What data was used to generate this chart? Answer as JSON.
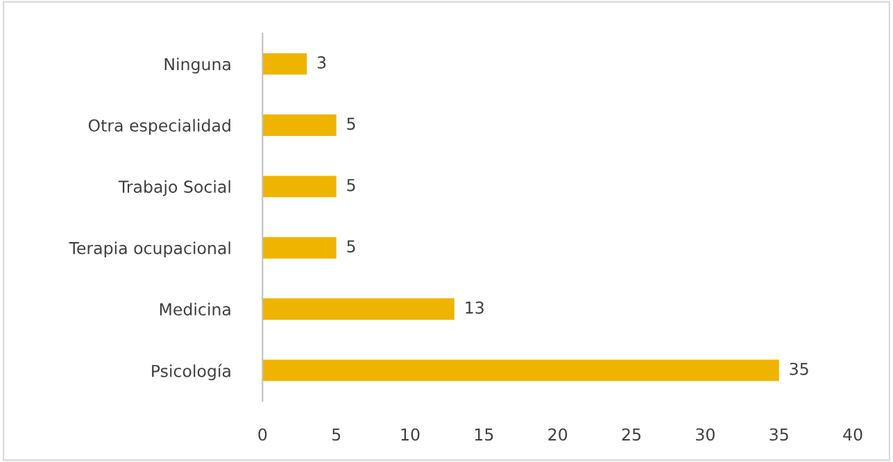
{
  "chart_data": {
    "type": "bar",
    "orientation": "horizontal",
    "categories": [
      "Ninguna",
      "Otra especialidad",
      "Trabajo Social",
      "Terapia ocupacional",
      "Medicina",
      "Psicología"
    ],
    "values": [
      3,
      5,
      5,
      5,
      13,
      35
    ],
    "color": "#efb400",
    "xlim": [
      0,
      40
    ],
    "xticks": [
      0,
      5,
      10,
      15,
      20,
      25,
      30,
      35,
      40
    ],
    "data_labels": true,
    "grid": false,
    "legend": false
  }
}
